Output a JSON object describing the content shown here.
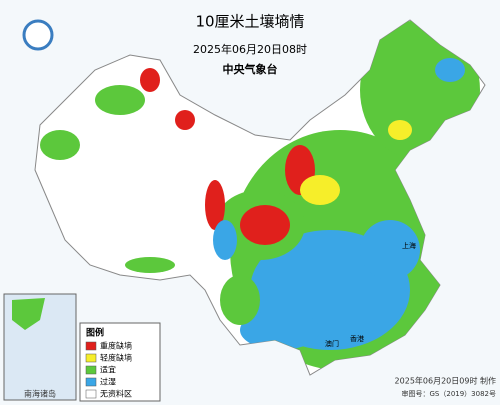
{
  "header": {
    "title": "10厘米土壤墒情",
    "time": "2025年06月20日08时",
    "agency": "中央气象台"
  },
  "legend": {
    "title": "图例",
    "items": [
      {
        "label": "重度缺墒",
        "color": "#e0201c"
      },
      {
        "label": "轻度缺墒",
        "color": "#f6ee2a"
      },
      {
        "label": "适宜",
        "color": "#5cc83c"
      },
      {
        "label": "过湿",
        "color": "#3aa6e6"
      },
      {
        "label": "无资料区",
        "color": "#ffffff"
      }
    ]
  },
  "places": [
    "上海",
    "香港",
    "澳门"
  ],
  "inset": {
    "label": "南海诸岛"
  },
  "footer": {
    "made": "2025年06月20日09时 制作",
    "approval": "审图号：GS（2019）3082号"
  }
}
